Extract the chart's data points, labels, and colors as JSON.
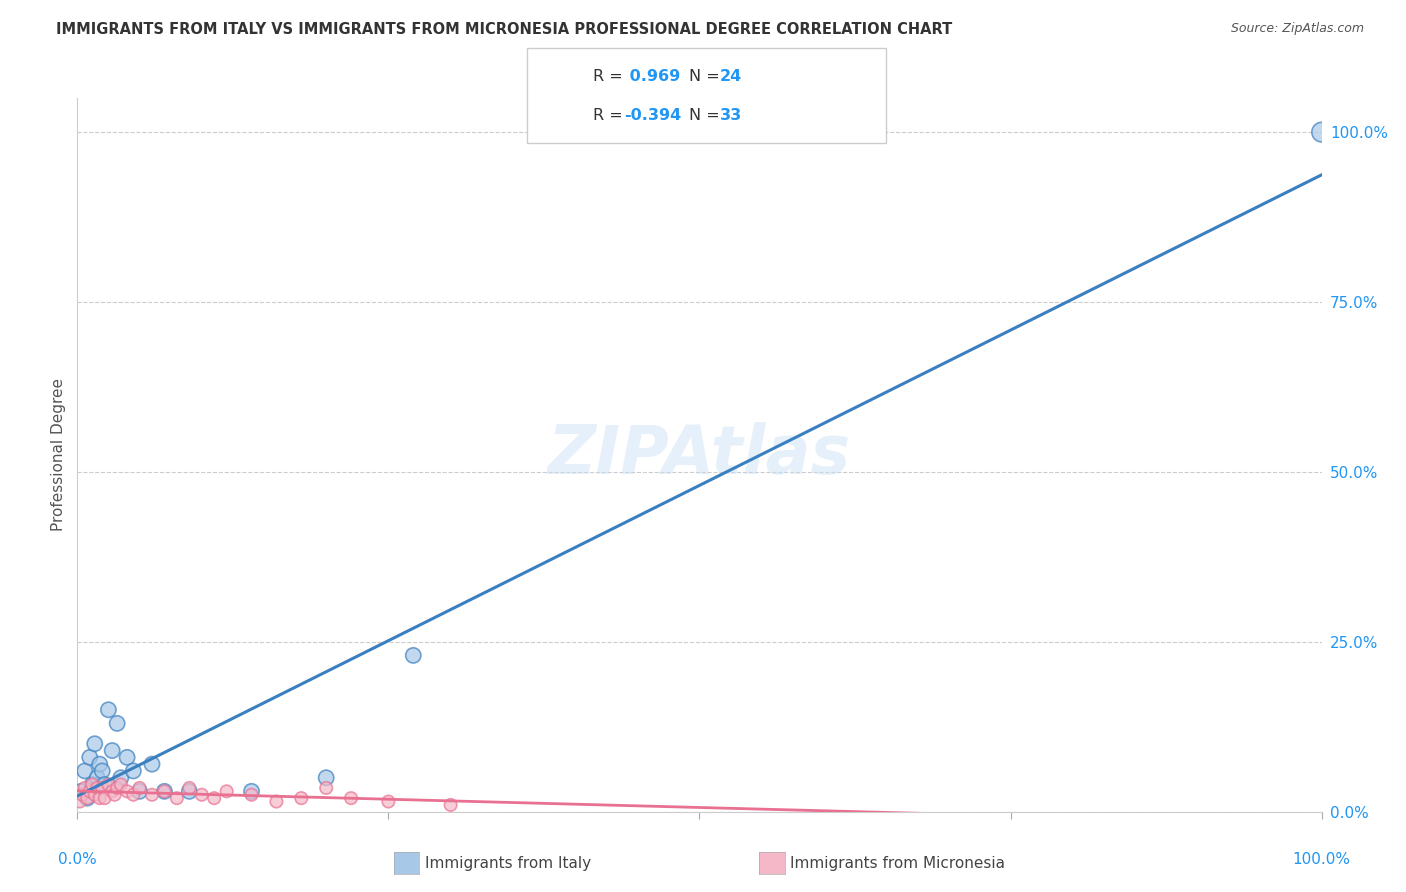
{
  "title": "IMMIGRANTS FROM ITALY VS IMMIGRANTS FROM MICRONESIA PROFESSIONAL DEGREE CORRELATION CHART",
  "source": "Source: ZipAtlas.com",
  "ylabel": "Professional Degree",
  "ytick_labels": [
    "0.0%",
    "25.0%",
    "50.0%",
    "75.0%",
    "100.0%"
  ],
  "ytick_values": [
    0.0,
    25.0,
    50.0,
    75.0,
    100.0
  ],
  "xlim": [
    0.0,
    100.0
  ],
  "ylim": [
    -2.0,
    105.0
  ],
  "watermark": "ZIPAtlas",
  "legend_r_italy": "0.969",
  "legend_n_italy": "24",
  "legend_r_micronesia": "-0.394",
  "legend_n_micronesia": "33",
  "italy_color": "#a8c8e8",
  "micronesia_color": "#f4b8c8",
  "italy_line_color": "#3a7fbf",
  "micronesia_line_color": "#e87090",
  "italy_scatter_x": [
    0.3,
    0.6,
    0.8,
    1.0,
    1.2,
    1.4,
    1.6,
    1.8,
    2.0,
    2.2,
    2.5,
    2.8,
    3.2,
    3.5,
    4.0,
    4.5,
    5.0,
    6.0,
    7.0,
    9.0,
    14.0,
    20.0,
    27.0,
    100.0
  ],
  "italy_scatter_y": [
    3.0,
    6.0,
    2.0,
    8.0,
    4.0,
    10.0,
    5.0,
    7.0,
    6.0,
    4.0,
    15.0,
    9.0,
    13.0,
    5.0,
    8.0,
    6.0,
    3.0,
    7.0,
    3.0,
    3.0,
    3.0,
    5.0,
    23.0,
    100.0
  ],
  "italy_scatter_sizes": [
    120,
    120,
    120,
    120,
    120,
    120,
    120,
    120,
    120,
    120,
    120,
    120,
    120,
    120,
    120,
    120,
    120,
    120,
    120,
    120,
    120,
    120,
    120,
    200
  ],
  "micronesia_scatter_x": [
    0.2,
    0.4,
    0.6,
    0.8,
    1.0,
    1.2,
    1.4,
    1.6,
    1.8,
    2.0,
    2.2,
    2.5,
    2.8,
    3.0,
    3.2,
    3.5,
    4.0,
    4.5,
    5.0,
    6.0,
    7.0,
    8.0,
    9.0,
    10.0,
    11.0,
    12.0,
    14.0,
    16.0,
    18.0,
    20.0,
    22.0,
    25.0,
    30.0
  ],
  "micronesia_scatter_y": [
    1.5,
    2.5,
    3.5,
    2.0,
    3.0,
    4.0,
    2.5,
    3.5,
    2.0,
    3.5,
    2.0,
    4.0,
    3.0,
    2.5,
    3.5,
    4.0,
    3.0,
    2.5,
    3.5,
    2.5,
    3.0,
    2.0,
    3.5,
    2.5,
    2.0,
    3.0,
    2.5,
    1.5,
    2.0,
    3.5,
    2.0,
    1.5,
    1.0
  ],
  "micronesia_scatter_sizes": [
    80,
    80,
    80,
    80,
    80,
    80,
    80,
    80,
    80,
    80,
    80,
    80,
    80,
    80,
    80,
    80,
    80,
    80,
    80,
    80,
    80,
    80,
    80,
    80,
    80,
    80,
    80,
    80,
    80,
    80,
    80,
    80,
    80
  ],
  "axis_color": "#2196F3",
  "legend_text_color_rn": "#2196F3",
  "legend_text_color_eq": "#333333",
  "grid_color": "#cccccc",
  "title_color": "#333333",
  "ylabel_color": "#555555",
  "source_color": "#555555"
}
